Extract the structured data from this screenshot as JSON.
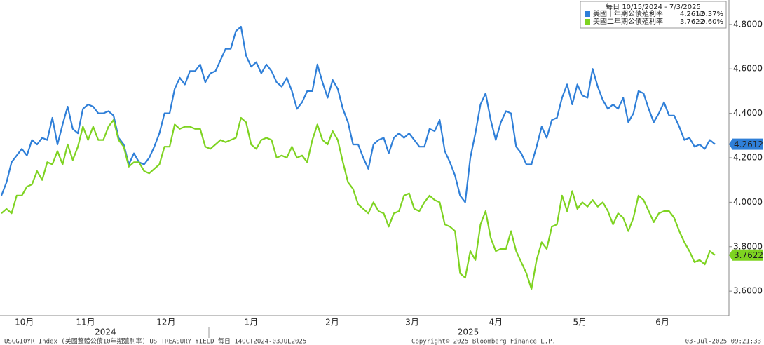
{
  "chart_data": {
    "type": "line",
    "legend_title": "每日 10/15/2024 - 7/3/2025",
    "series": [
      {
        "name": "美國十年期公債殖利率",
        "color": "#2f7fd8",
        "change_label": "-0.37%",
        "label_text_color": "#ffffff",
        "values": [
          4.03,
          4.09,
          4.18,
          4.21,
          4.24,
          4.21,
          4.28,
          4.26,
          4.29,
          4.28,
          4.38,
          4.26,
          4.35,
          4.43,
          4.33,
          4.31,
          4.42,
          4.44,
          4.43,
          4.4,
          4.4,
          4.41,
          4.39,
          4.29,
          4.26,
          4.17,
          4.22,
          4.18,
          4.17,
          4.2,
          4.25,
          4.31,
          4.4,
          4.4,
          4.51,
          4.56,
          4.53,
          4.59,
          4.59,
          4.62,
          4.54,
          4.58,
          4.59,
          4.64,
          4.69,
          4.69,
          4.77,
          4.79,
          4.66,
          4.61,
          4.63,
          4.58,
          4.62,
          4.59,
          4.54,
          4.52,
          4.56,
          4.5,
          4.42,
          4.45,
          4.5,
          4.5,
          4.62,
          4.54,
          4.47,
          4.55,
          4.51,
          4.42,
          4.36,
          4.26,
          4.26,
          4.2,
          4.15,
          4.26,
          4.28,
          4.29,
          4.22,
          4.29,
          4.31,
          4.29,
          4.31,
          4.28,
          4.25,
          4.25,
          4.33,
          4.32,
          4.37,
          4.23,
          4.18,
          4.12,
          4.03,
          4.0,
          4.2,
          4.31,
          4.44,
          4.49,
          4.37,
          4.28,
          4.36,
          4.41,
          4.4,
          4.25,
          4.22,
          4.17,
          4.17,
          4.25,
          4.34,
          4.29,
          4.37,
          4.38,
          4.47,
          4.53,
          4.44,
          4.53,
          4.48,
          4.47,
          4.6,
          4.52,
          4.46,
          4.42,
          4.44,
          4.42,
          4.47,
          4.36,
          4.4,
          4.5,
          4.49,
          4.42,
          4.36,
          4.4,
          4.45,
          4.39,
          4.39,
          4.34,
          4.28,
          4.29,
          4.25,
          4.26,
          4.24,
          4.28,
          4.2612
        ]
      },
      {
        "name": "美國二年期公債殖利率",
        "color": "#7ed321",
        "change_label": "-0.60%",
        "label_text_color": "#1a1a1a",
        "values": [
          3.95,
          3.97,
          3.95,
          4.03,
          4.03,
          4.07,
          4.08,
          4.14,
          4.1,
          4.18,
          4.17,
          4.23,
          4.17,
          4.26,
          4.19,
          4.25,
          4.34,
          4.28,
          4.34,
          4.28,
          4.28,
          4.34,
          4.37,
          4.28,
          4.25,
          4.16,
          4.18,
          4.18,
          4.14,
          4.13,
          4.15,
          4.17,
          4.25,
          4.25,
          4.35,
          4.33,
          4.34,
          4.34,
          4.33,
          4.33,
          4.25,
          4.24,
          4.26,
          4.28,
          4.27,
          4.28,
          4.29,
          4.38,
          4.36,
          4.26,
          4.24,
          4.28,
          4.29,
          4.28,
          4.2,
          4.21,
          4.2,
          4.25,
          4.2,
          4.21,
          4.18,
          4.28,
          4.35,
          4.28,
          4.26,
          4.32,
          4.28,
          4.18,
          4.09,
          4.06,
          3.99,
          3.97,
          3.95,
          4.0,
          3.96,
          3.95,
          3.89,
          3.95,
          3.96,
          4.03,
          4.04,
          3.97,
          3.96,
          4.0,
          4.03,
          4.01,
          4.0,
          3.9,
          3.89,
          3.87,
          3.68,
          3.66,
          3.78,
          3.74,
          3.9,
          3.96,
          3.84,
          3.78,
          3.79,
          3.79,
          3.87,
          3.78,
          3.73,
          3.68,
          3.61,
          3.74,
          3.82,
          3.79,
          3.89,
          3.9,
          4.03,
          3.96,
          4.05,
          3.97,
          4.0,
          3.98,
          4.01,
          3.98,
          4.0,
          3.96,
          3.9,
          3.95,
          3.93,
          3.87,
          3.93,
          4.03,
          4.01,
          3.96,
          3.91,
          3.95,
          3.96,
          3.96,
          3.93,
          3.87,
          3.82,
          3.78,
          3.73,
          3.74,
          3.72,
          3.78,
          3.7622
        ]
      }
    ],
    "xlim": [
      0,
      140
    ],
    "xticks": [
      {
        "value": 4.5,
        "label": "10月"
      },
      {
        "value": 16.5,
        "label": "11月"
      },
      {
        "value": 32.3,
        "label": "12月"
      },
      {
        "value": 49,
        "label": "1月"
      },
      {
        "value": 64.9,
        "label": "2月"
      },
      {
        "value": 80.6,
        "label": "3月"
      },
      {
        "value": 97,
        "label": "4月"
      },
      {
        "value": 113.5,
        "label": "5月"
      },
      {
        "value": 129.7,
        "label": "6月"
      }
    ],
    "year_ticks": [
      {
        "value": 20.4,
        "label": "2024"
      },
      {
        "value": 91.6,
        "label": "2025"
      }
    ],
    "ylim": [
      3.49,
      4.91
    ],
    "yticks": [
      {
        "value": 3.6,
        "label": "3.6000"
      },
      {
        "value": 3.8,
        "label": "3.8000"
      },
      {
        "value": 4.0,
        "label": "4.0000"
      },
      {
        "value": 4.2,
        "label": "4.2000"
      },
      {
        "value": 4.4,
        "label": "4.4000"
      },
      {
        "value": 4.6,
        "label": "4.6000"
      },
      {
        "value": 4.8,
        "label": "4.8000"
      }
    ],
    "footer_left": "USGG10YR Index (美國整體公債10年期殖利率) US TREASURY YIELD  每日 14OCT2024-03JUL2025",
    "footer_center": "Copyright© 2025 Bloomberg Finance L.P.",
    "footer_right": "03-Jul-2025 09:21:33"
  }
}
